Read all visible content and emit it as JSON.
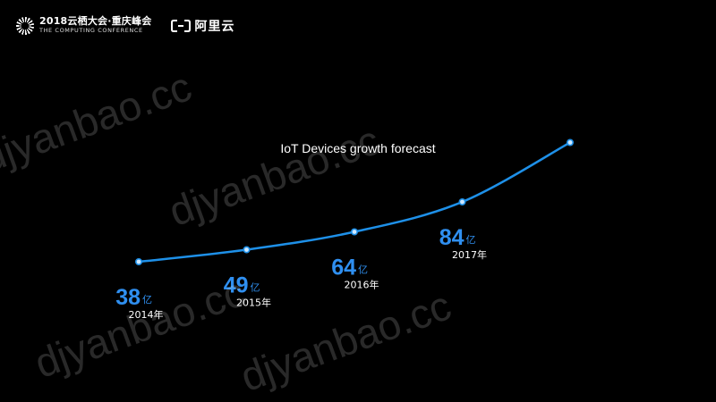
{
  "header": {
    "conference_name": "2018云栖大会·重庆峰会",
    "conference_subtitle": "THE COMPUTING CONFERENCE",
    "company_name": "阿里云"
  },
  "watermark_text": "djyanbao.cc",
  "chart_data": {
    "type": "line",
    "title": "IoT Devices growth forecast",
    "xlabel": "",
    "ylabel": "",
    "grid": false,
    "legend": "none",
    "x": [
      "2014年",
      "2015年",
      "2016年",
      "2017年",
      ""
    ],
    "y": [
      38,
      49,
      64,
      84,
      110
    ],
    "labeled_values": [
      "38",
      "49",
      "64",
      "84"
    ],
    "unit": "亿",
    "line_color": "#1e90e8",
    "label_color": "#2f8ff0"
  }
}
